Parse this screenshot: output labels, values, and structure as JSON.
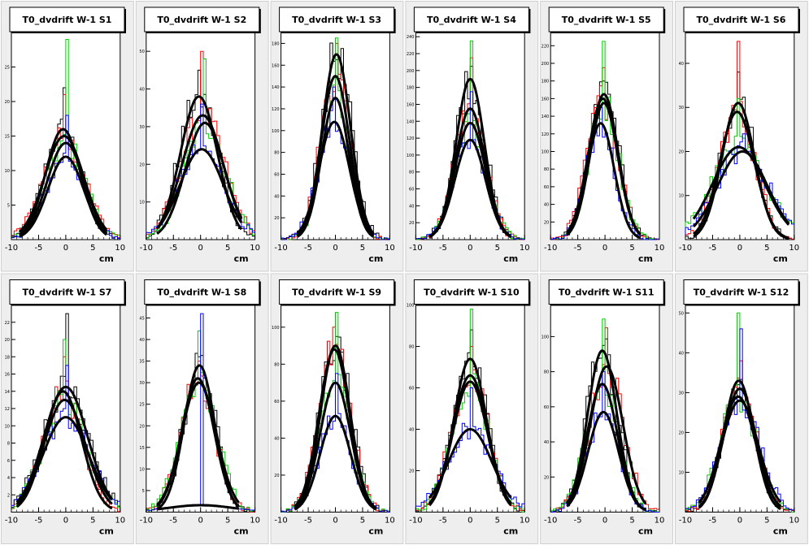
{
  "colors": {
    "page_bg": "#ffffff",
    "pad_fill": "#eeeeee",
    "frame_fill": "#ffffff",
    "histogram_colors": [
      "#000000",
      "#ff0000",
      "#00cc00",
      "#0000ff"
    ],
    "fit_color": "#000000"
  },
  "chart_data": [
    {
      "type": "histogram_with_gaussian_fits",
      "title": "T0_dvdrift W-1 S1",
      "xlabel": "cm",
      "xlim": [
        -10,
        10
      ],
      "ylim": [
        0,
        30
      ],
      "x_ticks": [
        -10,
        -5,
        0,
        5,
        10
      ],
      "y_ticks": [
        5,
        10,
        15,
        20,
        25
      ],
      "fits": [
        {
          "amplitude": 16,
          "mean": -0.5,
          "sigma": 3.2
        },
        {
          "amplitude": 15,
          "mean": -0.3,
          "sigma": 3.6
        },
        {
          "amplitude": 14,
          "mean": 0.0,
          "sigma": 3.4
        },
        {
          "amplitude": 12,
          "mean": 0.0,
          "sigma": 3.3
        }
      ],
      "hist_peaks": [
        22,
        21,
        29,
        18
      ],
      "fit_xrange": [
        -8.5,
        7.5
      ]
    },
    {
      "type": "histogram_with_gaussian_fits",
      "title": "T0_dvdrift W-1 S2",
      "xlabel": "cm",
      "xlim": [
        -10,
        10
      ],
      "ylim": [
        0,
        55
      ],
      "x_ticks": [
        -10,
        -5,
        0,
        5,
        10
      ],
      "y_ticks": [
        10,
        20,
        30,
        40,
        50
      ],
      "fits": [
        {
          "amplitude": 38,
          "mean": -0.3,
          "sigma": 3.4
        },
        {
          "amplitude": 33,
          "mean": 0.4,
          "sigma": 3.8
        },
        {
          "amplitude": 31,
          "mean": 0.8,
          "sigma": 3.6
        },
        {
          "amplitude": 24,
          "mean": 0.2,
          "sigma": 4.0
        }
      ],
      "hist_peaks": [
        45,
        50,
        48,
        36
      ],
      "fit_xrange": [
        -8.0,
        7.5
      ]
    },
    {
      "type": "histogram_with_gaussian_fits",
      "title": "T0_dvdrift W-1 S3",
      "xlabel": "cm",
      "xlim": [
        -10,
        10
      ],
      "ylim": [
        0,
        190
      ],
      "x_ticks": [
        -10,
        -5,
        0,
        5,
        10
      ],
      "y_ticks": [
        20,
        40,
        60,
        80,
        100,
        120,
        140,
        160,
        180
      ],
      "fits": [
        {
          "amplitude": 170,
          "mean": 0.2,
          "sigma": 2.6
        },
        {
          "amplitude": 150,
          "mean": 0.0,
          "sigma": 2.6
        },
        {
          "amplitude": 130,
          "mean": 0.0,
          "sigma": 2.5
        },
        {
          "amplitude": 108,
          "mean": -0.2,
          "sigma": 2.8
        }
      ],
      "hist_peaks": [
        165,
        180,
        185,
        140
      ],
      "fit_xrange": [
        -7.0,
        7.0
      ]
    },
    {
      "type": "histogram_with_gaussian_fits",
      "title": "T0_dvdrift W-1 S4",
      "xlabel": "cm",
      "xlim": [
        -10,
        10
      ],
      "ylim": [
        0,
        245
      ],
      "x_ticks": [
        -10,
        -5,
        0,
        5,
        10
      ],
      "y_ticks": [
        20,
        40,
        60,
        80,
        100,
        120,
        140,
        160,
        180,
        200,
        220,
        240
      ],
      "fits": [
        {
          "amplitude": 190,
          "mean": 0.0,
          "sigma": 2.6
        },
        {
          "amplitude": 155,
          "mean": 0.0,
          "sigma": 2.7
        },
        {
          "amplitude": 138,
          "mean": 0.0,
          "sigma": 2.8
        },
        {
          "amplitude": 118,
          "mean": 0.0,
          "sigma": 2.8
        }
      ],
      "hist_peaks": [
        205,
        215,
        235,
        175
      ],
      "fit_xrange": [
        -7.5,
        7.5
      ]
    },
    {
      "type": "histogram_with_gaussian_fits",
      "title": "T0_dvdrift W-1 S5",
      "xlabel": "cm",
      "xlim": [
        -10,
        10
      ],
      "ylim": [
        0,
        235
      ],
      "x_ticks": [
        -10,
        -5,
        0,
        5,
        10
      ],
      "y_ticks": [
        20,
        40,
        60,
        80,
        100,
        120,
        140,
        160,
        180,
        200,
        220
      ],
      "fits": [
        {
          "amplitude": 165,
          "mean": -0.2,
          "sigma": 2.6
        },
        {
          "amplitude": 160,
          "mean": -0.4,
          "sigma": 2.7
        },
        {
          "amplitude": 155,
          "mean": -0.2,
          "sigma": 2.6
        },
        {
          "amplitude": 132,
          "mean": -0.8,
          "sigma": 2.5
        }
      ],
      "hist_peaks": [
        180,
        195,
        225,
        150
      ],
      "fit_xrange": [
        -7.0,
        6.5
      ]
    },
    {
      "type": "histogram_with_gaussian_fits",
      "title": "T0_dvdrift W-1 S6",
      "xlabel": "cm",
      "xlim": [
        -10,
        10
      ],
      "ylim": [
        0,
        47
      ],
      "x_ticks": [
        -10,
        -5,
        0,
        5,
        10
      ],
      "y_ticks": [
        10,
        20,
        30,
        40
      ],
      "fits": [
        {
          "amplitude": 31,
          "mean": -0.3,
          "sigma": 3.0
        },
        {
          "amplitude": 29,
          "mean": -0.5,
          "sigma": 3.2
        },
        {
          "amplitude": 21,
          "mean": -0.2,
          "sigma": 4.8
        },
        {
          "amplitude": 20,
          "mean": 0.5,
          "sigma": 4.6
        }
      ],
      "hist_peaks": [
        38,
        45,
        32,
        24
      ],
      "fit_xrange": [
        -8.5,
        9.0
      ]
    },
    {
      "type": "histogram_with_gaussian_fits",
      "title": "T0_dvdrift W-1 S7",
      "xlabel": "cm",
      "xlim": [
        -10,
        10
      ],
      "ylim": [
        0,
        24
      ],
      "x_ticks": [
        -10,
        -5,
        0,
        5,
        10
      ],
      "y_ticks": [
        2,
        4,
        6,
        8,
        10,
        12,
        14,
        16,
        18,
        20,
        22
      ],
      "fits": [
        {
          "amplitude": 14.5,
          "mean": 0.0,
          "sigma": 4.0
        },
        {
          "amplitude": 14,
          "mean": -0.5,
          "sigma": 3.4
        },
        {
          "amplitude": 13,
          "mean": -0.2,
          "sigma": 3.8
        },
        {
          "amplitude": 11,
          "mean": 0.0,
          "sigma": 4.2
        }
      ],
      "hist_peaks": [
        23,
        18,
        20,
        17
      ],
      "fit_xrange": [
        -9.0,
        8.5
      ]
    },
    {
      "type": "histogram_with_gaussian_fits",
      "title": "T0_dvdrift W-1 S8",
      "xlabel": "cm",
      "xlim": [
        -10,
        10
      ],
      "ylim": [
        0,
        48
      ],
      "x_ticks": [
        -10,
        -5,
        0,
        5,
        10
      ],
      "y_ticks": [
        5,
        10,
        15,
        20,
        25,
        30,
        35,
        40,
        45
      ],
      "fits": [
        {
          "amplitude": 34,
          "mean": -0.2,
          "sigma": 2.8
        },
        {
          "amplitude": 31,
          "mean": -0.5,
          "sigma": 3.0
        },
        {
          "amplitude": 30,
          "mean": -0.3,
          "sigma": 3.2
        },
        {
          "amplitude": 1.6,
          "mean": 0.0,
          "sigma": 6.0
        }
      ],
      "hist_peaks": [
        36,
        35,
        42,
        46
      ],
      "fit_xrange": [
        -8.0,
        7.0
      ]
    },
    {
      "type": "histogram_with_gaussian_fits",
      "title": "T0_dvdrift W-1 S9",
      "xlabel": "cm",
      "xlim": [
        -10,
        10
      ],
      "ylim": [
        0,
        112
      ],
      "x_ticks": [
        -10,
        -5,
        0,
        5,
        10
      ],
      "y_ticks": [
        20,
        40,
        60,
        80,
        100
      ],
      "fits": [
        {
          "amplitude": 90,
          "mean": 0.0,
          "sigma": 2.7
        },
        {
          "amplitude": 88,
          "mean": -0.2,
          "sigma": 2.8
        },
        {
          "amplitude": 70,
          "mean": 0.0,
          "sigma": 2.8
        },
        {
          "amplitude": 52,
          "mean": 0.0,
          "sigma": 2.8
        }
      ],
      "hist_peaks": [
        95,
        100,
        108,
        75
      ],
      "fit_xrange": [
        -7.5,
        7.5
      ]
    },
    {
      "type": "histogram_with_gaussian_fits",
      "title": "T0_dvdrift W-1 S10",
      "xlabel": "cm",
      "xlim": [
        -10,
        10
      ],
      "ylim": [
        0,
        100
      ],
      "x_ticks": [
        -10,
        -5,
        0,
        5,
        10
      ],
      "y_ticks": [
        20,
        40,
        60,
        80,
        100
      ],
      "fits": [
        {
          "amplitude": 74,
          "mean": 0.0,
          "sigma": 3.0
        },
        {
          "amplitude": 66,
          "mean": 0.0,
          "sigma": 3.2
        },
        {
          "amplitude": 63,
          "mean": 0.0,
          "sigma": 3.2
        },
        {
          "amplitude": 40,
          "mean": 0.0,
          "sigma": 4.0
        }
      ],
      "hist_peaks": [
        88,
        80,
        98,
        60
      ],
      "fit_xrange": [
        -7.5,
        7.5
      ]
    },
    {
      "type": "histogram_with_gaussian_fits",
      "title": "T0_dvdrift W-1 S11",
      "xlabel": "cm",
      "xlim": [
        -10,
        10
      ],
      "ylim": [
        0,
        118
      ],
      "x_ticks": [
        -10,
        -5,
        0,
        5,
        10
      ],
      "y_ticks": [
        20,
        40,
        60,
        80,
        100
      ],
      "fits": [
        {
          "amplitude": 92,
          "mean": -0.5,
          "sigma": 2.7
        },
        {
          "amplitude": 83,
          "mean": 0.3,
          "sigma": 3.0
        },
        {
          "amplitude": 73,
          "mean": -0.5,
          "sigma": 2.8
        },
        {
          "amplitude": 57,
          "mean": -0.3,
          "sigma": 2.8
        }
      ],
      "hist_peaks": [
        95,
        105,
        110,
        80
      ],
      "fit_xrange": [
        -7.0,
        7.5
      ]
    },
    {
      "type": "histogram_with_gaussian_fits",
      "title": "T0_dvdrift W-1 S12",
      "xlabel": "cm",
      "xlim": [
        -10,
        10
      ],
      "ylim": [
        0,
        52
      ],
      "x_ticks": [
        -10,
        -5,
        0,
        5,
        10
      ],
      "y_ticks": [
        10,
        20,
        30,
        40,
        50
      ],
      "fits": [
        {
          "amplitude": 33,
          "mean": -0.2,
          "sigma": 2.8
        },
        {
          "amplitude": 31,
          "mean": 0.0,
          "sigma": 3.0
        },
        {
          "amplitude": 29,
          "mean": -0.3,
          "sigma": 3.2
        },
        {
          "amplitude": 28,
          "mean": 0.0,
          "sigma": 3.4
        }
      ],
      "hist_peaks": [
        32,
        38,
        50,
        46
      ],
      "fit_xrange": [
        -7.5,
        7.5
      ]
    }
  ]
}
